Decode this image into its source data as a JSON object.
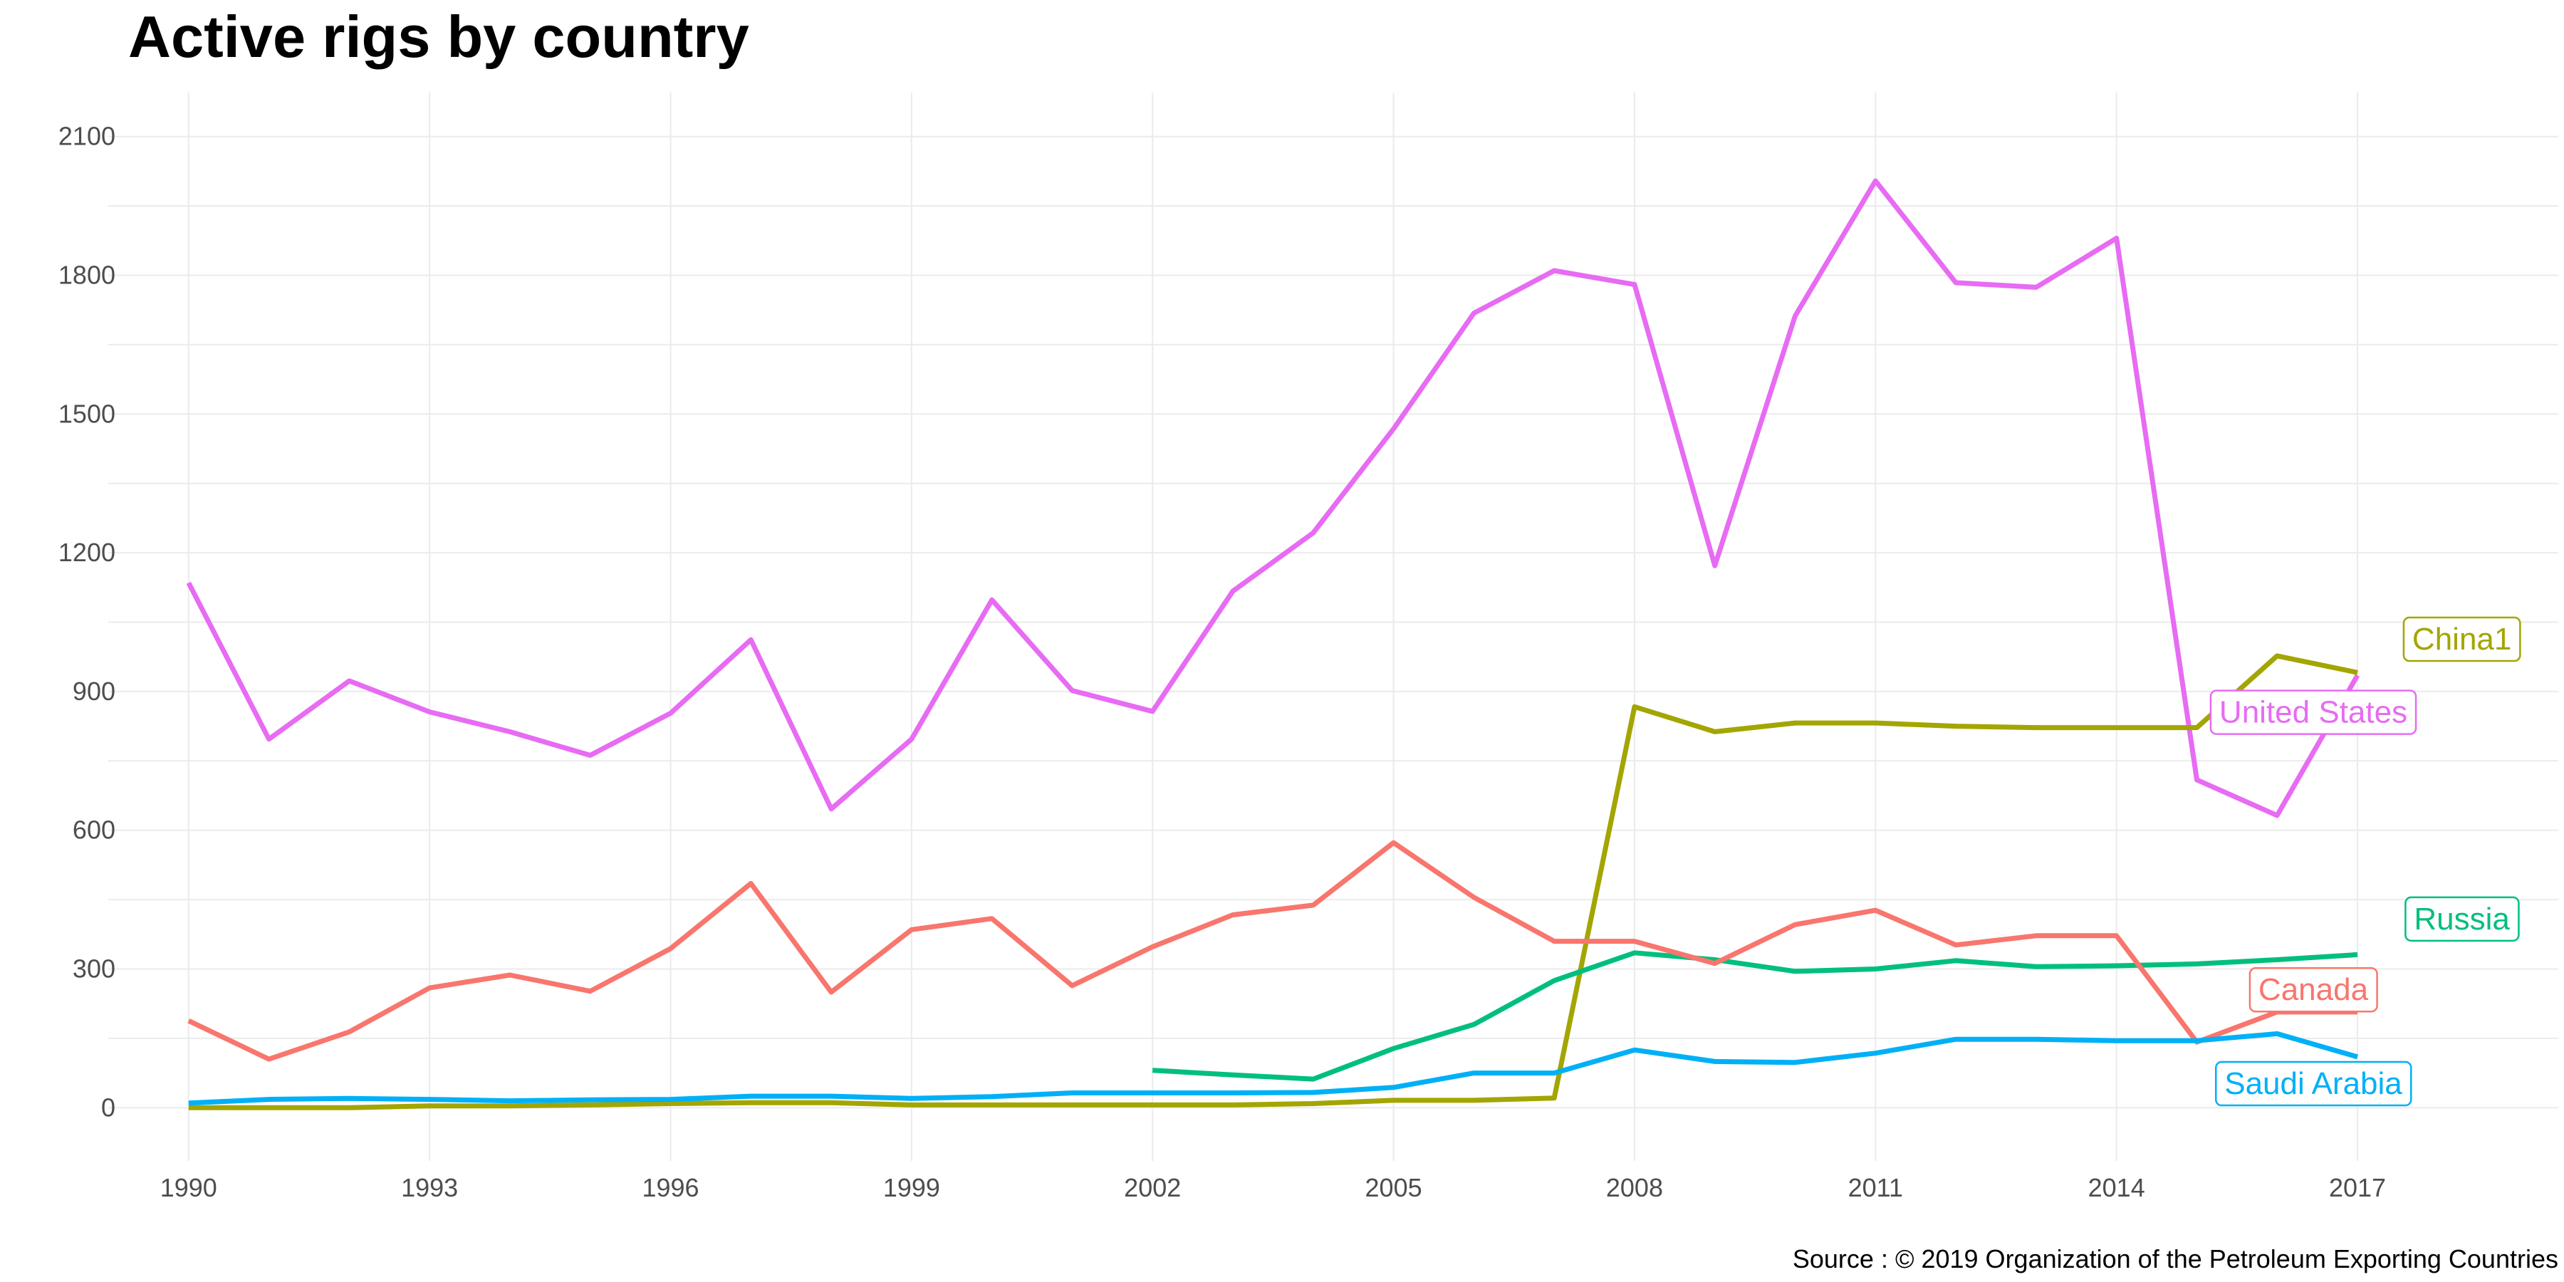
{
  "chart_data": {
    "type": "line",
    "title": "Active rigs by country",
    "caption": "Source : © 2019 Organization of the Petroleum Exporting Countries",
    "xlabel": "",
    "ylabel": "",
    "xlim": [
      1989,
      2019.5
    ],
    "ylim": [
      -115,
      2195
    ],
    "x_ticks": [
      1990,
      1993,
      1996,
      1999,
      2002,
      2005,
      2008,
      2011,
      2014,
      2017
    ],
    "y_ticks": [
      0,
      300,
      600,
      900,
      1200,
      1500,
      1800,
      2100
    ],
    "grid": true,
    "legend": "direct labels at line ends",
    "series": [
      {
        "name": "United States",
        "color": "#e76bf3",
        "x": [
          1990,
          1991,
          1992,
          1993,
          1994,
          1995,
          1996,
          1997,
          1998,
          1999,
          2000,
          2001,
          2002,
          2003,
          2004,
          2005,
          2006,
          2007,
          2008,
          2009,
          2010,
          2011,
          2012,
          2013,
          2014,
          2015,
          2016,
          2017
        ],
        "y": [
          1135,
          797,
          923,
          856,
          813,
          762,
          853,
          1012,
          646,
          797,
          1098,
          902,
          857,
          1117,
          1243,
          1468,
          1718,
          1810,
          1780,
          1172,
          1712,
          2004,
          1784,
          1774,
          1880,
          709,
          632,
          935
        ]
      },
      {
        "name": "China1",
        "color": "#a3a500",
        "x": [
          1990,
          1991,
          1992,
          1993,
          1994,
          1995,
          1996,
          1997,
          1998,
          1999,
          2000,
          2001,
          2002,
          2003,
          2004,
          2005,
          2006,
          2007,
          2008,
          2009,
          2010,
          2011,
          2012,
          2013,
          2014,
          2015,
          2016,
          2017
        ],
        "y": [
          0,
          0,
          0,
          4,
          4,
          6,
          9,
          11,
          11,
          6,
          6,
          6,
          6,
          6,
          9,
          16,
          16,
          21,
          867,
          813,
          832,
          832,
          825,
          822,
          822,
          822,
          977,
          941
        ]
      },
      {
        "name": "Russia",
        "color": "#00bf7d",
        "x": [
          2002,
          2003,
          2004,
          2005,
          2006,
          2007,
          2008,
          2009,
          2010,
          2011,
          2012,
          2013,
          2014,
          2015,
          2016,
          2017
        ],
        "y": [
          81,
          71,
          62,
          128,
          180,
          275,
          335,
          320,
          295,
          300,
          318,
          305,
          307,
          311,
          320,
          331
        ]
      },
      {
        "name": "Canada",
        "color": "#f8766d",
        "x": [
          1990,
          1991,
          1992,
          1993,
          1994,
          1995,
          1996,
          1997,
          1998,
          1999,
          2000,
          2001,
          2002,
          2003,
          2004,
          2005,
          2006,
          2007,
          2008,
          2009,
          2010,
          2011,
          2012,
          2013,
          2014,
          2015,
          2016,
          2017
        ],
        "y": [
          188,
          105,
          164,
          259,
          287,
          252,
          344,
          485,
          250,
          385,
          409,
          264,
          348,
          417,
          438,
          573,
          455,
          360,
          360,
          312,
          396,
          427,
          352,
          372,
          372,
          142,
          207,
          207
        ]
      },
      {
        "name": "Saudi Arabia",
        "color": "#00b0f6",
        "x": [
          1990,
          1991,
          1992,
          1993,
          1994,
          1995,
          1996,
          1997,
          1998,
          1999,
          2000,
          2001,
          2002,
          2003,
          2004,
          2005,
          2006,
          2007,
          2008,
          2009,
          2010,
          2011,
          2012,
          2013,
          2014,
          2015,
          2016,
          2017
        ],
        "y": [
          10,
          18,
          20,
          18,
          15,
          17,
          18,
          25,
          25,
          20,
          24,
          32,
          32,
          32,
          33,
          44,
          75,
          75,
          125,
          100,
          98,
          118,
          148,
          148,
          145,
          145,
          160,
          110
        ]
      }
    ],
    "labels": [
      {
        "series": "China1",
        "text": "China1",
        "x": 2018.3,
        "y": 1013
      },
      {
        "series": "United States",
        "text": "United States",
        "x": 2016.45,
        "y": 855
      },
      {
        "series": "Russia",
        "text": "Russia",
        "x": 2018.3,
        "y": 408
      },
      {
        "series": "Canada",
        "text": "Canada",
        "x": 2016.45,
        "y": 255
      },
      {
        "series": "Saudi Arabia",
        "text": "Saudi Arabia",
        "x": 2016.45,
        "y": 52
      }
    ]
  }
}
